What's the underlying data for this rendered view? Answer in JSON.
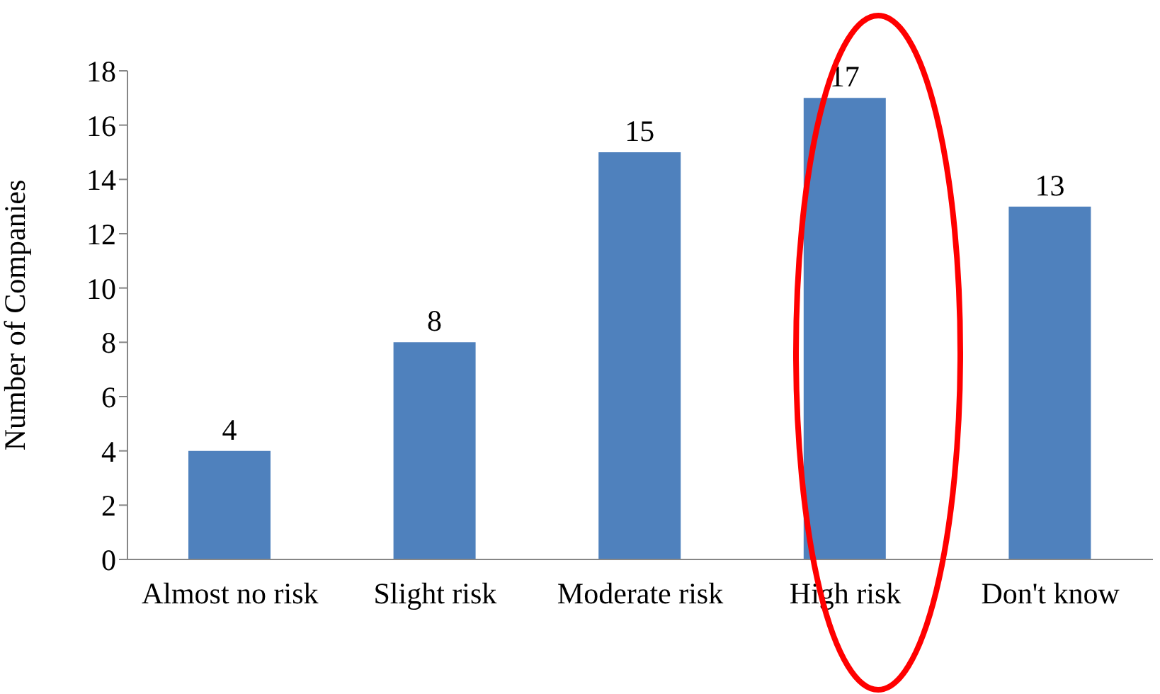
{
  "chart_data": {
    "type": "bar",
    "ylabel": "Number of Companies",
    "categories": [
      "Almost no risk",
      "Slight risk",
      "Moderate risk",
      "High risk",
      "Don't know"
    ],
    "values": [
      4,
      8,
      15,
      17,
      13
    ],
    "color": "#4f81bd",
    "ylim": [
      0,
      18
    ],
    "yticks": [
      0,
      2,
      4,
      6,
      8,
      10,
      12,
      14,
      16,
      18
    ],
    "data_labels": true,
    "grid": false
  }
}
